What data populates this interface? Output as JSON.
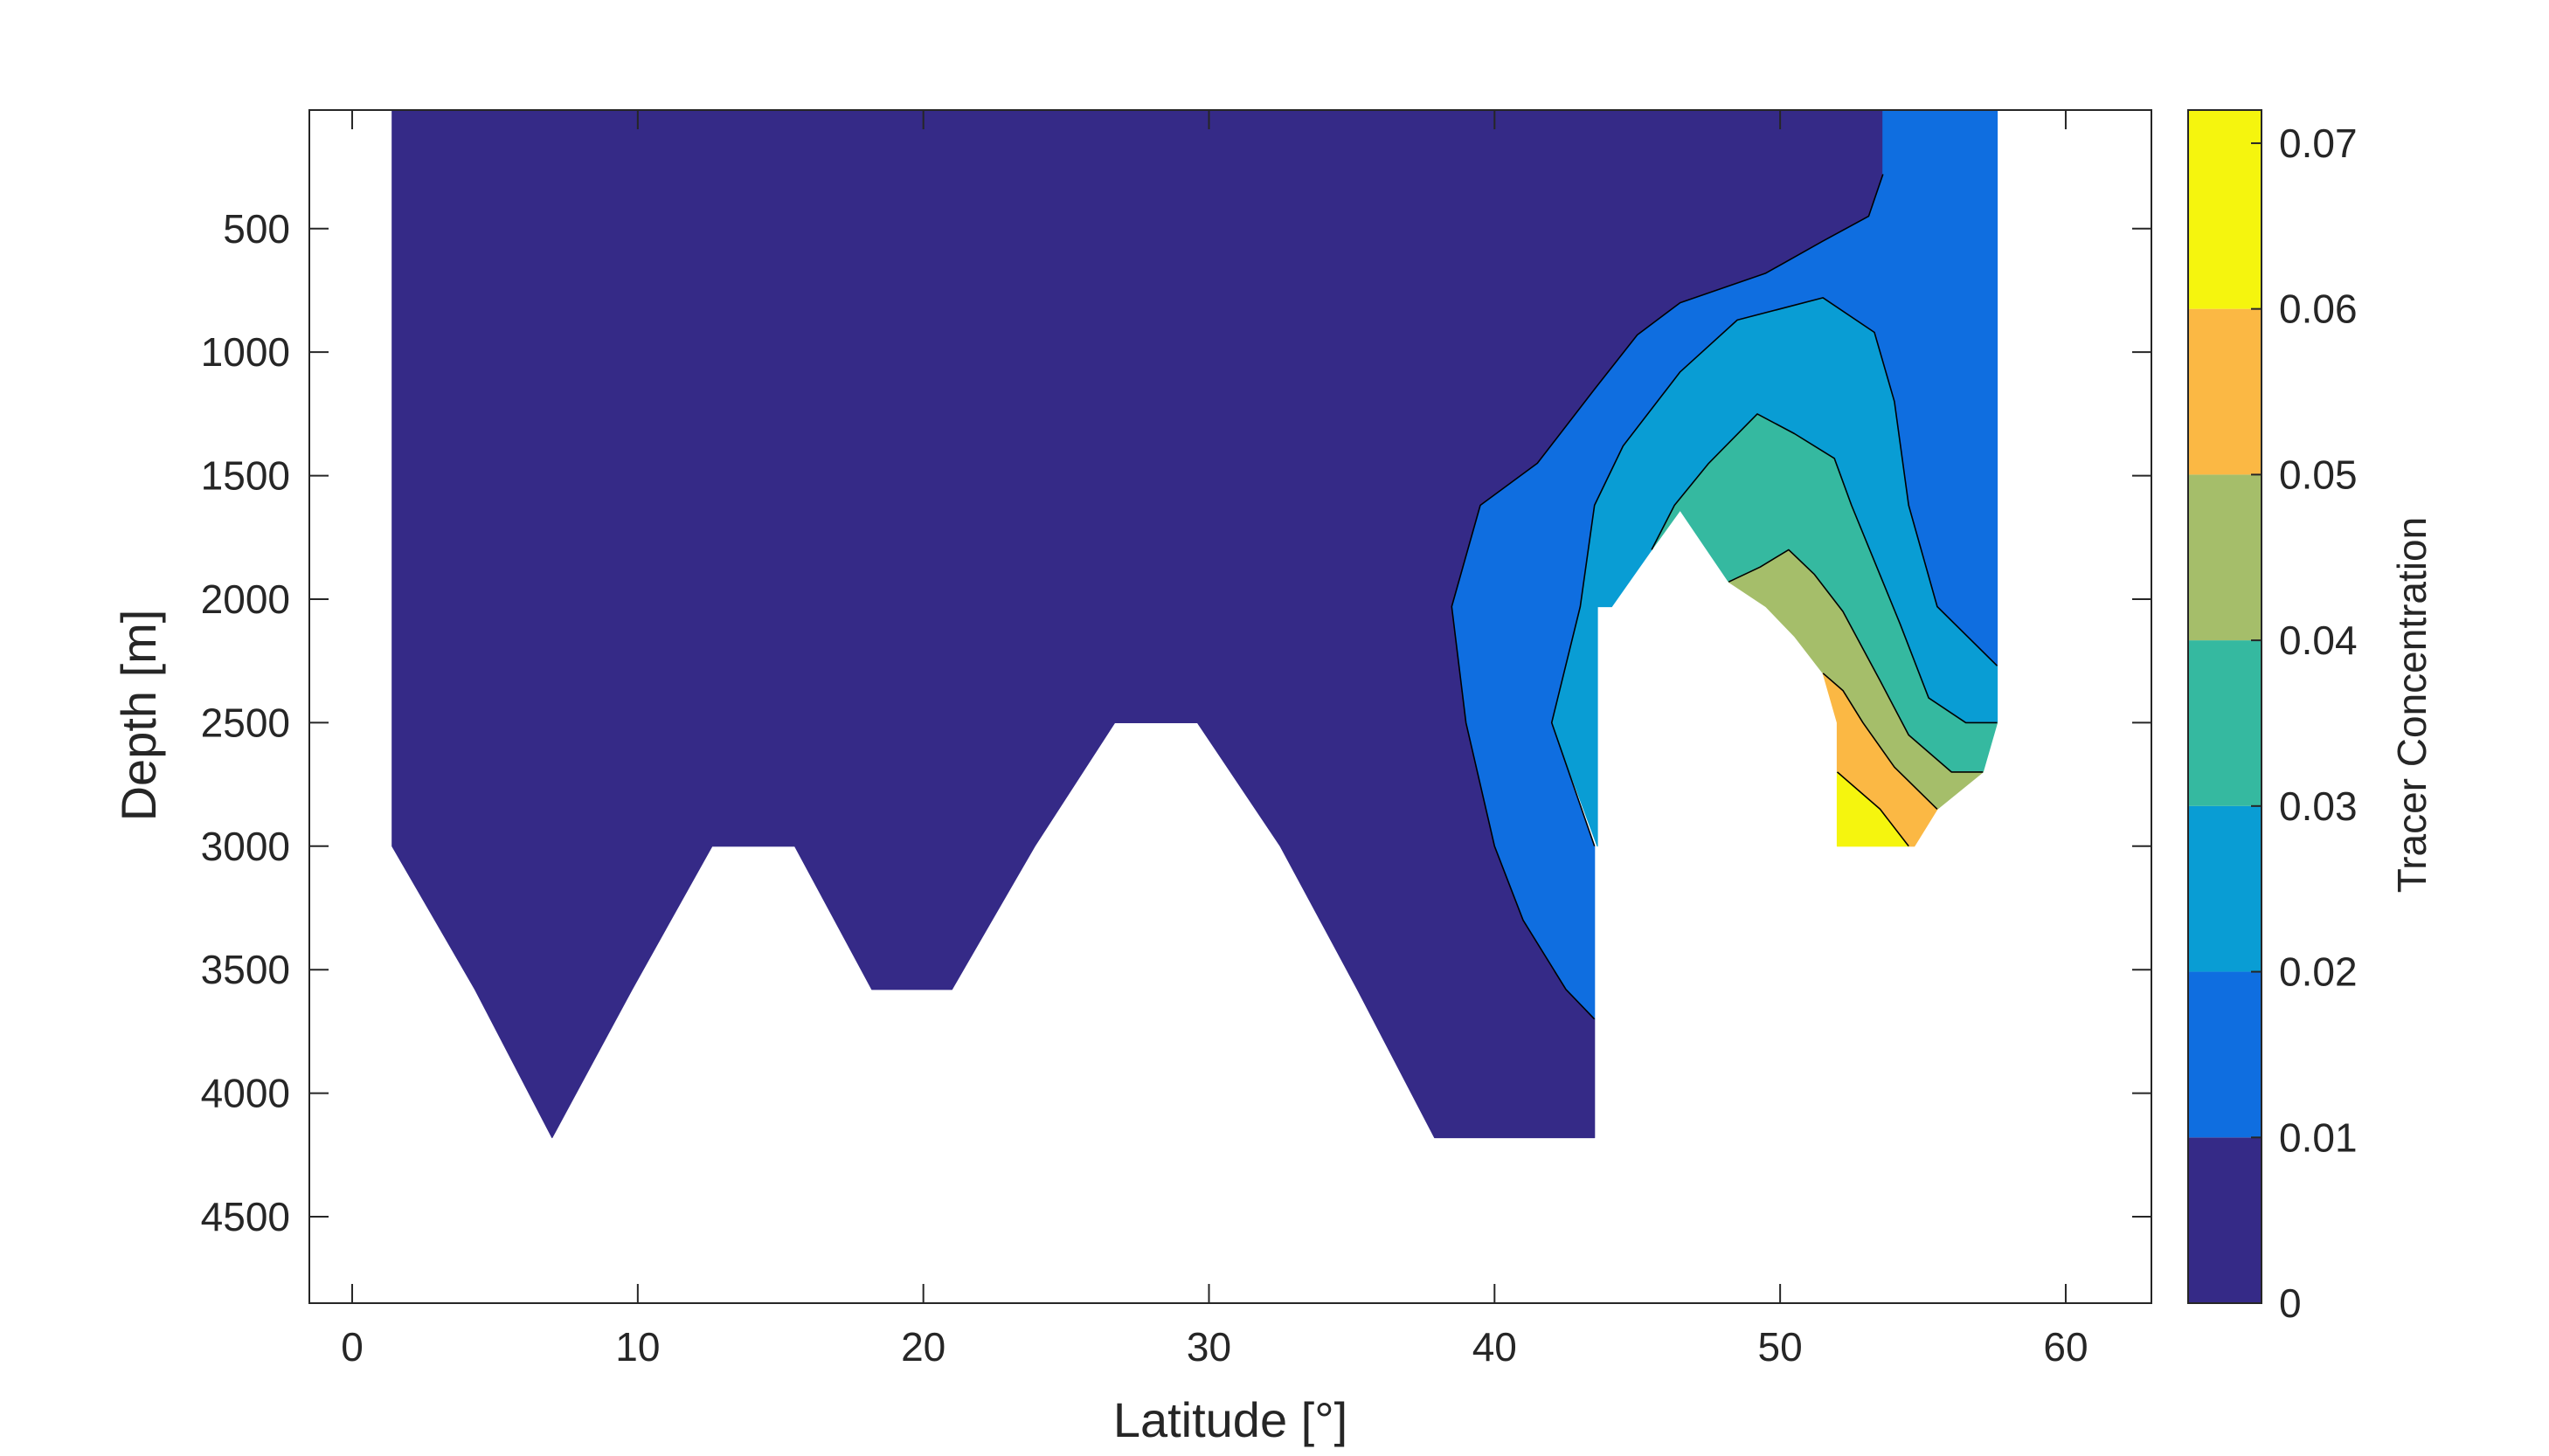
{
  "chart_data": {
    "type": "contourf",
    "xlabel": "Latitude [°]",
    "ylabel": "Depth [m]",
    "colorbar_label": "Tracer Concentration",
    "xlim": [
      -1.5,
      63
    ],
    "ylim": [
      4850,
      20
    ],
    "y_reversed": true,
    "x_ticks": [
      0,
      10,
      20,
      30,
      40,
      50,
      60
    ],
    "y_ticks": [
      500,
      1000,
      1500,
      2000,
      2500,
      3000,
      3500,
      4000,
      4500
    ],
    "colorbar_range": [
      0,
      0.072
    ],
    "colorbar_ticks": [
      0,
      0.01,
      0.02,
      0.03,
      0.04,
      0.05,
      0.06,
      0.07
    ],
    "levels": [
      0,
      0.01,
      0.02,
      0.03,
      0.04,
      0.05,
      0.06,
      0.072
    ],
    "level_colors": [
      "#352a87",
      "#0f6ee0",
      "#099dd4",
      "#35b9a0",
      "#a5be6a",
      "#fbb844",
      "#f5f50e"
    ],
    "grid": false,
    "regions": [
      {
        "level": "0-0.01",
        "color": "#352a87",
        "polygon": [
          [
            1.4,
            20
          ],
          [
            53.6,
            20
          ],
          [
            53.6,
            280
          ],
          [
            53.1,
            450
          ],
          [
            51.5,
            550
          ],
          [
            49.5,
            680
          ],
          [
            46.5,
            800
          ],
          [
            45,
            930
          ],
          [
            43.5,
            1150
          ],
          [
            41.5,
            1450
          ],
          [
            39.5,
            1620
          ],
          [
            38.5,
            2030
          ],
          [
            39,
            2500
          ],
          [
            40,
            3000
          ],
          [
            41,
            3300
          ],
          [
            42.5,
            3580
          ],
          [
            43.5,
            3700
          ],
          [
            43.5,
            4180
          ],
          [
            37.9,
            4180
          ],
          [
            35.2,
            3580
          ],
          [
            32.5,
            3000
          ],
          [
            29.6,
            2500
          ],
          [
            26.7,
            2500
          ],
          [
            23.9,
            3000
          ],
          [
            21,
            3580
          ],
          [
            18.2,
            3580
          ],
          [
            15.5,
            3000
          ],
          [
            12.6,
            3000
          ],
          [
            9.8,
            3580
          ],
          [
            7,
            4180
          ],
          [
            4.3,
            3580
          ],
          [
            1.4,
            3000
          ]
        ]
      },
      {
        "level": "0.01-0.02",
        "color": "#0f6ee0",
        "polygon": [
          [
            53.6,
            20
          ],
          [
            57.6,
            20
          ],
          [
            57.6,
            2270
          ],
          [
            55.5,
            2030
          ],
          [
            54.5,
            1620
          ],
          [
            54,
            1200
          ],
          [
            53.3,
            920
          ],
          [
            51.5,
            780
          ],
          [
            48.5,
            870
          ],
          [
            46.5,
            1080
          ],
          [
            44.5,
            1380
          ],
          [
            43.5,
            1620
          ],
          [
            43,
            2030
          ],
          [
            42,
            2500
          ],
          [
            43.5,
            3000
          ],
          [
            43.5,
            3700
          ],
          [
            42.5,
            3580
          ],
          [
            41,
            3300
          ],
          [
            40,
            3000
          ],
          [
            39,
            2500
          ],
          [
            38.5,
            2030
          ],
          [
            39.5,
            1620
          ],
          [
            41.5,
            1450
          ],
          [
            43.5,
            1150
          ],
          [
            45,
            930
          ],
          [
            46.5,
            800
          ],
          [
            49.5,
            680
          ],
          [
            51.5,
            550
          ],
          [
            53.1,
            450
          ],
          [
            53.6,
            280
          ]
        ]
      },
      {
        "level": "0.02-0.03",
        "color": "#099dd4",
        "polygon": [
          [
            53.3,
            920
          ],
          [
            54,
            1200
          ],
          [
            54.5,
            1620
          ],
          [
            55.5,
            2030
          ],
          [
            57.6,
            2270
          ],
          [
            57.6,
            2500
          ],
          [
            56.5,
            2500
          ],
          [
            55.2,
            2400
          ],
          [
            54.2,
            2100
          ],
          [
            52.5,
            1620
          ],
          [
            51.9,
            1430
          ],
          [
            50.5,
            1330
          ],
          [
            49.2,
            1250
          ],
          [
            47.5,
            1450
          ],
          [
            46.3,
            1620
          ],
          [
            45.5,
            1800
          ],
          [
            44.1,
            2030
          ],
          [
            43.6,
            2030
          ],
          [
            43.6,
            3000
          ],
          [
            42,
            2500
          ],
          [
            43,
            2030
          ],
          [
            43.5,
            1620
          ],
          [
            44.5,
            1380
          ],
          [
            46.5,
            1080
          ],
          [
            48.5,
            870
          ],
          [
            51.5,
            780
          ]
        ]
      },
      {
        "level": "0.03-0.04",
        "color": "#35b9a0",
        "polygon": [
          [
            49.2,
            1250
          ],
          [
            50.5,
            1330
          ],
          [
            51.9,
            1430
          ],
          [
            52.5,
            1620
          ],
          [
            54.2,
            2100
          ],
          [
            55.2,
            2400
          ],
          [
            56.5,
            2500
          ],
          [
            57.6,
            2500
          ],
          [
            57.1,
            2700
          ],
          [
            56,
            2700
          ],
          [
            54.5,
            2550
          ],
          [
            53.5,
            2330
          ],
          [
            52.2,
            2050
          ],
          [
            51.2,
            1900
          ],
          [
            50.3,
            1800
          ],
          [
            49.3,
            1870
          ],
          [
            48.2,
            1930
          ],
          [
            46.5,
            1640
          ],
          [
            45.5,
            1800
          ],
          [
            46.3,
            1620
          ],
          [
            47.5,
            1450
          ]
        ]
      },
      {
        "level": "0.04-0.05",
        "color": "#a5be6a",
        "polygon": [
          [
            48.2,
            1930
          ],
          [
            49.3,
            1870
          ],
          [
            50.3,
            1800
          ],
          [
            51.2,
            1900
          ],
          [
            52.2,
            2050
          ],
          [
            53.5,
            2330
          ],
          [
            54.5,
            2550
          ],
          [
            56,
            2700
          ],
          [
            57.1,
            2700
          ],
          [
            55.5,
            2850
          ],
          [
            54,
            2680
          ],
          [
            52.9,
            2500
          ],
          [
            52.2,
            2370
          ],
          [
            51.5,
            2300
          ],
          [
            50.5,
            2150
          ],
          [
            49.5,
            2030
          ]
        ]
      },
      {
        "level": "0.05-0.06",
        "color": "#fbb844",
        "polygon": [
          [
            51.5,
            2300
          ],
          [
            52.2,
            2370
          ],
          [
            52.9,
            2500
          ],
          [
            54,
            2680
          ],
          [
            55.5,
            2850
          ],
          [
            54.7,
            3000
          ],
          [
            54.5,
            3000
          ],
          [
            53.5,
            2850
          ],
          [
            52,
            2700
          ],
          [
            52,
            2500
          ]
        ]
      },
      {
        "level": "0.06-0.072",
        "color": "#f5f50e",
        "polygon": [
          [
            52,
            2700
          ],
          [
            53.5,
            2850
          ],
          [
            54.5,
            3000
          ],
          [
            52,
            3000
          ]
        ]
      }
    ],
    "contour_lines": [
      [
        [
          53.6,
          280
        ],
        [
          53.1,
          450
        ],
        [
          51.5,
          550
        ],
        [
          49.5,
          680
        ],
        [
          46.5,
          800
        ],
        [
          45,
          930
        ],
        [
          43.5,
          1150
        ],
        [
          41.5,
          1450
        ],
        [
          39.5,
          1620
        ],
        [
          38.5,
          2030
        ],
        [
          39,
          2500
        ],
        [
          40,
          3000
        ],
        [
          41,
          3300
        ],
        [
          42.5,
          3580
        ],
        [
          43.5,
          3700
        ]
      ],
      [
        [
          57.6,
          2270
        ],
        [
          55.5,
          2030
        ],
        [
          54.5,
          1620
        ],
        [
          54,
          1200
        ],
        [
          53.3,
          920
        ],
        [
          51.5,
          780
        ],
        [
          48.5,
          870
        ],
        [
          46.5,
          1080
        ],
        [
          44.5,
          1380
        ],
        [
          43.5,
          1620
        ],
        [
          43,
          2030
        ],
        [
          42,
          2500
        ],
        [
          43.5,
          3000
        ]
      ],
      [
        [
          57.6,
          2500
        ],
        [
          56.5,
          2500
        ],
        [
          55.2,
          2400
        ],
        [
          54.2,
          2100
        ],
        [
          52.5,
          1620
        ],
        [
          51.9,
          1430
        ],
        [
          50.5,
          1330
        ],
        [
          49.2,
          1250
        ],
        [
          47.5,
          1450
        ],
        [
          46.3,
          1620
        ],
        [
          45.5,
          1800
        ]
      ],
      [
        [
          57.1,
          2700
        ],
        [
          56,
          2700
        ],
        [
          54.5,
          2550
        ],
        [
          53.5,
          2330
        ],
        [
          52.2,
          2050
        ],
        [
          51.2,
          1900
        ],
        [
          50.3,
          1800
        ],
        [
          49.3,
          1870
        ],
        [
          48.2,
          1930
        ]
      ],
      [
        [
          55.5,
          2850
        ],
        [
          54,
          2680
        ],
        [
          52.9,
          2500
        ],
        [
          52.2,
          2370
        ],
        [
          51.5,
          2300
        ]
      ],
      [
        [
          54.5,
          3000
        ],
        [
          53.5,
          2850
        ],
        [
          52,
          2700
        ]
      ]
    ]
  }
}
